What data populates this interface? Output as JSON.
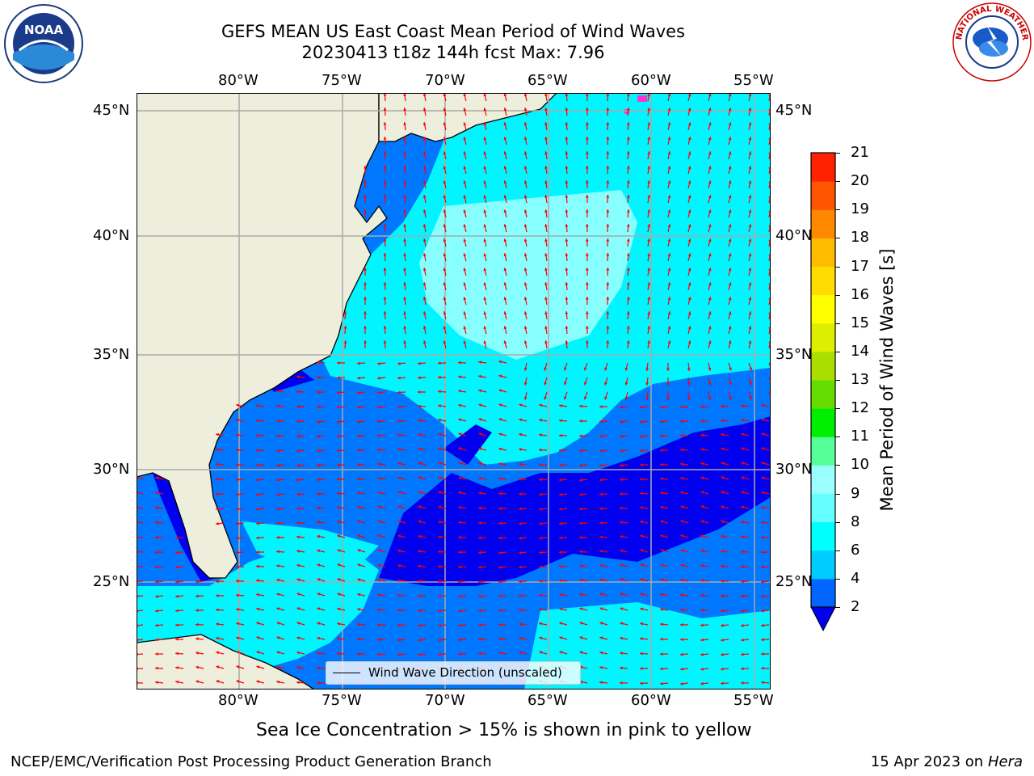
{
  "title": {
    "line1": "GEFS MEAN US East Coast Mean Period of Wind Waves",
    "line2": "20230413 t18z 144h fcst   Max: 7.96"
  },
  "axes": {
    "lon_labels": [
      "80°W",
      "75°W",
      "70°W",
      "65°W",
      "60°W",
      "55°W"
    ],
    "lat_labels": [
      "45°N",
      "40°N",
      "35°N",
      "30°N",
      "25°N"
    ]
  },
  "colorbar": {
    "label": "Mean Period of Wind Waves [s]",
    "ticks": [
      "2",
      "4",
      "6",
      "8",
      "9",
      "10",
      "11",
      "12",
      "13",
      "14",
      "15",
      "16",
      "17",
      "18",
      "19",
      "20",
      "21"
    ],
    "colors": [
      "#0066ff",
      "#00ccff",
      "#00ffff",
      "#66ffff",
      "#99ffff",
      "#55ff99",
      "#00ee00",
      "#66dd00",
      "#aadd00",
      "#ddee00",
      "#ffff00",
      "#ffdd00",
      "#ffbb00",
      "#ff8800",
      "#ff5500",
      "#ff2200"
    ],
    "underflow_color": "#0000ee"
  },
  "legend": {
    "label": "Wind Wave Direction (unscaled)"
  },
  "note": "Sea Ice Concentration > 15% is shown in pink to yellow",
  "footer": {
    "left": "NCEP/EMC/Verification Post Processing Product Generation Branch",
    "right_prefix": "15 Apr 2023 on ",
    "right_italic": "Hera"
  },
  "logos": {
    "left": "NOAA",
    "right": "NATIONAL WEATHER SERVICE"
  },
  "map_colors": {
    "land": "#eeeedd",
    "ocean_low": "#0000ee",
    "ocean_mid": "#0077ff",
    "ocean_high": "#00f5ff",
    "ocean_top": "#88ffff",
    "arrow": "#ff0000",
    "grid": "#aaaaaa",
    "sea_ice": "#ff33cc"
  }
}
